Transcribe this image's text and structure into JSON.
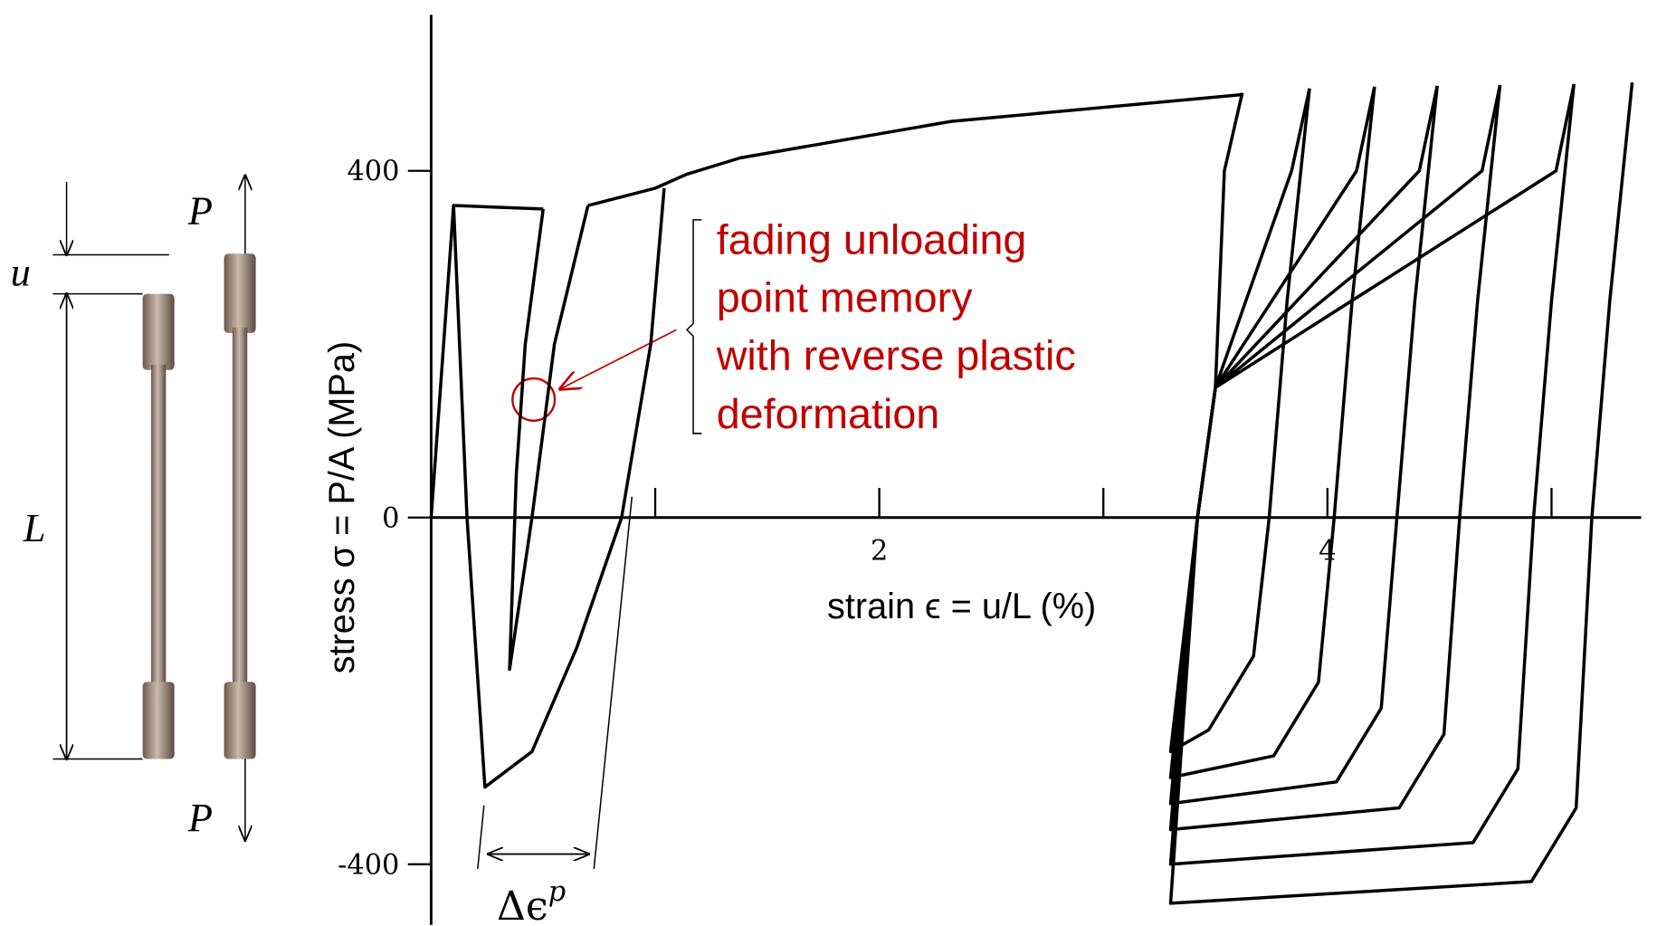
{
  "chart_data": {
    "type": "line",
    "xlabel": "strain ϵ = u/L (%)",
    "ylabel": "stress σ = P/A (MPa)",
    "xlim": [
      0,
      5.4
    ],
    "ylim": [
      -470,
      580
    ],
    "xticks": [
      2,
      4
    ],
    "xminor": [
      1,
      3,
      5
    ],
    "yticks": [
      -400,
      0,
      400
    ],
    "color": "#000000",
    "series": [
      {
        "x": [
          0,
          0.1,
          0.3,
          0.5
        ],
        "values": [
          0,
          360,
          358,
          356
        ]
      },
      {
        "x": [
          0.1,
          0.16,
          0.24,
          0.45,
          0.65,
          0.85,
          0.98,
          1.04
        ],
        "values": [
          360,
          0,
          -311,
          -270,
          -150,
          0,
          200,
          380
        ]
      },
      {
        "x": [
          0.5,
          0.42,
          0.38,
          0.35,
          0.45,
          0.55,
          0.7
        ],
        "values": [
          356,
          200,
          50,
          -175,
          0,
          200,
          360
        ]
      },
      {
        "x": [
          0.7,
          1.0,
          1.14,
          1.38,
          2.32,
          3.62
        ],
        "values": [
          360,
          380,
          396,
          415,
          457,
          488
        ]
      },
      {
        "x": [
          3.62,
          3.54,
          3.5,
          3.42,
          3.3,
          3.47,
          3.67,
          3.74,
          3.82,
          3.92
        ],
        "values": [
          490,
          400,
          150,
          0,
          -270,
          -245,
          -160,
          0,
          250,
          495
        ]
      },
      {
        "x": [
          3.92,
          3.84,
          3.5,
          3.42,
          3.3,
          3.76,
          3.96,
          4.03,
          4.11,
          4.21
        ],
        "values": [
          495,
          400,
          150,
          0,
          -300,
          -275,
          -190,
          0,
          250,
          497
        ]
      },
      {
        "x": [
          4.21,
          4.13,
          3.5,
          3.42,
          3.3,
          4.04,
          4.24,
          4.31,
          4.39,
          4.49
        ],
        "values": [
          497,
          400,
          150,
          0,
          -330,
          -305,
          -220,
          0,
          250,
          498
        ]
      },
      {
        "x": [
          4.49,
          4.41,
          3.5,
          3.42,
          3.3,
          4.32,
          4.52,
          4.59,
          4.67,
          4.77
        ],
        "values": [
          498,
          400,
          150,
          0,
          -360,
          -335,
          -250,
          0,
          250,
          499
        ]
      },
      {
        "x": [
          4.77,
          4.69,
          3.5,
          3.42,
          3.3,
          4.65,
          4.85,
          4.92,
          5.0,
          5.1
        ],
        "values": [
          499,
          400,
          150,
          0,
          -400,
          -375,
          -290,
          0,
          250,
          500
        ]
      },
      {
        "x": [
          5.1,
          5.02,
          3.5,
          3.42,
          3.3,
          4.91,
          5.11,
          5.18,
          5.26,
          5.36
        ],
        "values": [
          500,
          400,
          150,
          0,
          -445,
          -420,
          -335,
          0,
          250,
          502
        ]
      }
    ],
    "annotation": [
      "fading unloading",
      "point memory",
      "with reverse plastic",
      "deformation"
    ],
    "annotation_color": "#c00000",
    "delta_label": "Δϵ",
    "delta_sup": "p"
  },
  "specimen": {
    "load_top": "P",
    "load_bottom": "P",
    "elongation": "u",
    "length": "L"
  }
}
